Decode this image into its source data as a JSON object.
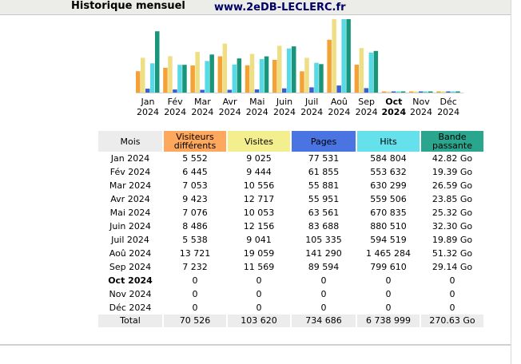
{
  "header": {
    "title": "Historique mensuel",
    "site": "www.2eDB-LECLERC.fr"
  },
  "colors": {
    "visitors": "#f4a236",
    "visits": "#eedf84",
    "pages": "#3a5fd0",
    "hits": "#58d9e6",
    "bandwidth": "#18957a"
  },
  "chart_data": {
    "type": "bar",
    "categories": [
      "Jan 2024",
      "Fév 2024",
      "Mar 2024",
      "Avr 2024",
      "Mai 2024",
      "Juin 2024",
      "Juil 2024",
      "Aoû 2024",
      "Sep 2024",
      "Oct 2024",
      "Nov 2024",
      "Déc 2024"
    ],
    "series": [
      {
        "name": "Visiteurs différents",
        "values": [
          5552,
          6445,
          7053,
          9423,
          7076,
          8486,
          5538,
          13721,
          7232,
          0,
          0,
          0
        ]
      },
      {
        "name": "Visites",
        "values": [
          9025,
          9444,
          10556,
          12717,
          10053,
          12156,
          9041,
          19059,
          11569,
          0,
          0,
          0
        ]
      },
      {
        "name": "Pages",
        "values": [
          77531,
          61855,
          55881,
          55951,
          63561,
          83688,
          105335,
          141290,
          89594,
          0,
          0,
          0
        ]
      },
      {
        "name": "Hits",
        "values": [
          584804,
          553632,
          630299,
          559506,
          670835,
          880510,
          594519,
          1465284,
          799610,
          0,
          0,
          0
        ]
      },
      {
        "name": "Bande passante",
        "values": [
          42.82,
          19.39,
          26.59,
          23.85,
          25.32,
          32.3,
          19.89,
          51.32,
          29.14,
          0,
          0,
          0
        ]
      }
    ]
  },
  "months": [
    {
      "month": "Jan",
      "year": "2024",
      "label": "Jan 2024",
      "visitors": "5 552",
      "visits": "9 025",
      "pages": "77 531",
      "hits": "584 804",
      "bandwidth": "42.82 Go"
    },
    {
      "month": "Fév",
      "year": "2024",
      "label": "Fév 2024",
      "visitors": "6 445",
      "visits": "9 444",
      "pages": "61 855",
      "hits": "553 632",
      "bandwidth": "19.39 Go"
    },
    {
      "month": "Mar",
      "year": "2024",
      "label": "Mar 2024",
      "visitors": "7 053",
      "visits": "10 556",
      "pages": "55 881",
      "hits": "630 299",
      "bandwidth": "26.59 Go"
    },
    {
      "month": "Avr",
      "year": "2024",
      "label": "Avr 2024",
      "visitors": "9 423",
      "visits": "12 717",
      "pages": "55 951",
      "hits": "559 506",
      "bandwidth": "23.85 Go"
    },
    {
      "month": "Mai",
      "year": "2024",
      "label": "Mai 2024",
      "visitors": "7 076",
      "visits": "10 053",
      "pages": "63 561",
      "hits": "670 835",
      "bandwidth": "25.32 Go"
    },
    {
      "month": "Juin",
      "year": "2024",
      "label": "Juin 2024",
      "visitors": "8 486",
      "visits": "12 156",
      "pages": "83 688",
      "hits": "880 510",
      "bandwidth": "32.30 Go"
    },
    {
      "month": "Juil",
      "year": "2024",
      "label": "Juil 2024",
      "visitors": "5 538",
      "visits": "9 041",
      "pages": "105 335",
      "hits": "594 519",
      "bandwidth": "19.89 Go"
    },
    {
      "month": "Aoû",
      "year": "2024",
      "label": "Aoû 2024",
      "visitors": "13 721",
      "visits": "19 059",
      "pages": "141 290",
      "hits": "1 465 284",
      "bandwidth": "51.32 Go"
    },
    {
      "month": "Sep",
      "year": "2024",
      "label": "Sep 2024",
      "visitors": "7 232",
      "visits": "11 569",
      "pages": "89 594",
      "hits": "799 610",
      "bandwidth": "29.14 Go"
    },
    {
      "month": "Oct",
      "year": "2024",
      "label": "Oct 2024",
      "visitors": "0",
      "visits": "0",
      "pages": "0",
      "hits": "0",
      "bandwidth": "0",
      "current": true
    },
    {
      "month": "Nov",
      "year": "2024",
      "label": "Nov 2024",
      "visitors": "0",
      "visits": "0",
      "pages": "0",
      "hits": "0",
      "bandwidth": "0"
    },
    {
      "month": "Déc",
      "year": "2024",
      "label": "Déc 2024",
      "visitors": "0",
      "visits": "0",
      "pages": "0",
      "hits": "0",
      "bandwidth": "0"
    }
  ],
  "table": {
    "headers": {
      "month": "Mois",
      "visitors": "Visiteurs différents",
      "visits": "Visites",
      "pages": "Pages",
      "hits": "Hits",
      "bandwidth": "Bande passante"
    },
    "total": {
      "label": "Total",
      "visitors": "70 526",
      "visits": "103 620",
      "pages": "734 686",
      "hits": "6 738 999",
      "bandwidth": "270.63 Go"
    }
  }
}
